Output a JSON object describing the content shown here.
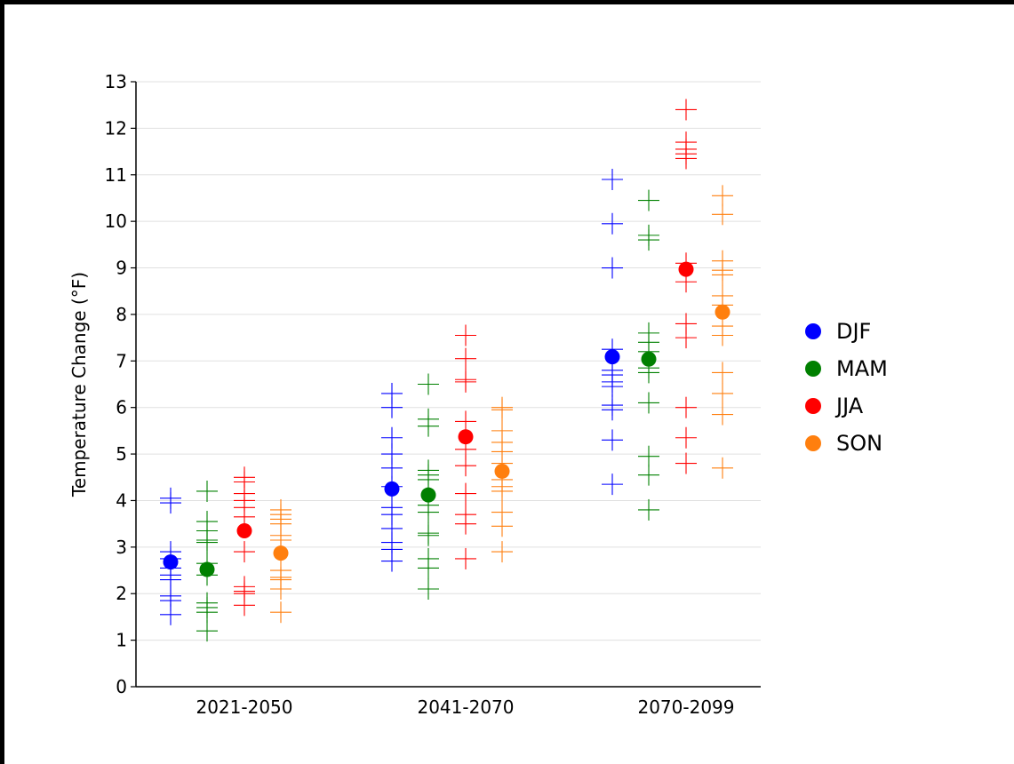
{
  "chart_data": {
    "type": "scatter",
    "title": "",
    "xlabel": "",
    "ylabel": "Temperature Change ($^\\circ$F)",
    "ylabel_display": "Temperature Change (°F)",
    "ylim": [
      0,
      13
    ],
    "yticks": [
      "0",
      "1",
      "2",
      "3",
      "4",
      "5",
      "6",
      "7",
      "8",
      "9",
      "10",
      "11",
      "12",
      "13"
    ],
    "grid": "horizontal",
    "legend_position": "right",
    "categories": [
      "2021-2050",
      "2041-2070",
      "2070-2099"
    ],
    "series": [
      {
        "name": "DJF",
        "color": "#0000ff",
        "mean": [
          2.68,
          4.25,
          7.09
        ],
        "models": [
          [
            1.55,
            1.85,
            1.95,
            2.3,
            2.4,
            2.55,
            2.75,
            2.9,
            3.95,
            4.05
          ],
          [
            2.7,
            2.95,
            3.1,
            3.4,
            3.7,
            3.85,
            4.3,
            4.7,
            5.0,
            5.35,
            6.0,
            6.3
          ],
          [
            4.35,
            5.3,
            5.95,
            6.05,
            6.45,
            6.55,
            6.7,
            6.8,
            7.25,
            9.0,
            9.95,
            10.9
          ]
        ]
      },
      {
        "name": "MAM",
        "color": "#008000",
        "mean": [
          2.52,
          4.12,
          7.04
        ],
        "models": [
          [
            1.2,
            1.6,
            1.7,
            1.8,
            2.4,
            2.65,
            3.1,
            3.15,
            3.35,
            3.55,
            4.2
          ],
          [
            2.1,
            2.55,
            2.75,
            3.25,
            3.3,
            3.75,
            3.9,
            4.45,
            4.55,
            4.65,
            5.6,
            5.75,
            6.5
          ],
          [
            3.8,
            4.55,
            4.95,
            6.1,
            6.75,
            6.85,
            7.2,
            7.4,
            7.6,
            9.6,
            9.7,
            10.45
          ]
        ]
      },
      {
        "name": "JJA",
        "color": "#ff0000",
        "mean": [
          3.35,
          5.37,
          8.97
        ],
        "models": [
          [
            1.75,
            2.0,
            2.05,
            2.15,
            2.9,
            3.65,
            3.85,
            4.0,
            4.15,
            4.4,
            4.5
          ],
          [
            2.75,
            3.5,
            3.7,
            4.15,
            4.75,
            5.1,
            5.7,
            6.55,
            6.6,
            7.05,
            7.55
          ],
          [
            4.8,
            5.35,
            6.0,
            7.5,
            7.8,
            8.7,
            9.1,
            11.35,
            11.45,
            11.55,
            11.7,
            12.4
          ]
        ]
      },
      {
        "name": "SON",
        "color": "#ff7f0e",
        "mean": [
          2.87,
          4.63,
          8.05
        ],
        "models": [
          [
            1.6,
            2.1,
            2.3,
            2.35,
            2.5,
            3.15,
            3.25,
            3.5,
            3.6,
            3.7,
            3.8
          ],
          [
            2.9,
            3.45,
            3.75,
            4.2,
            4.3,
            4.45,
            4.8,
            5.05,
            5.25,
            5.5,
            5.95,
            6.0
          ],
          [
            4.7,
            5.85,
            6.3,
            6.75,
            7.55,
            7.75,
            8.2,
            8.4,
            8.85,
            8.95,
            9.15,
            10.15,
            10.55
          ]
        ]
      }
    ]
  }
}
